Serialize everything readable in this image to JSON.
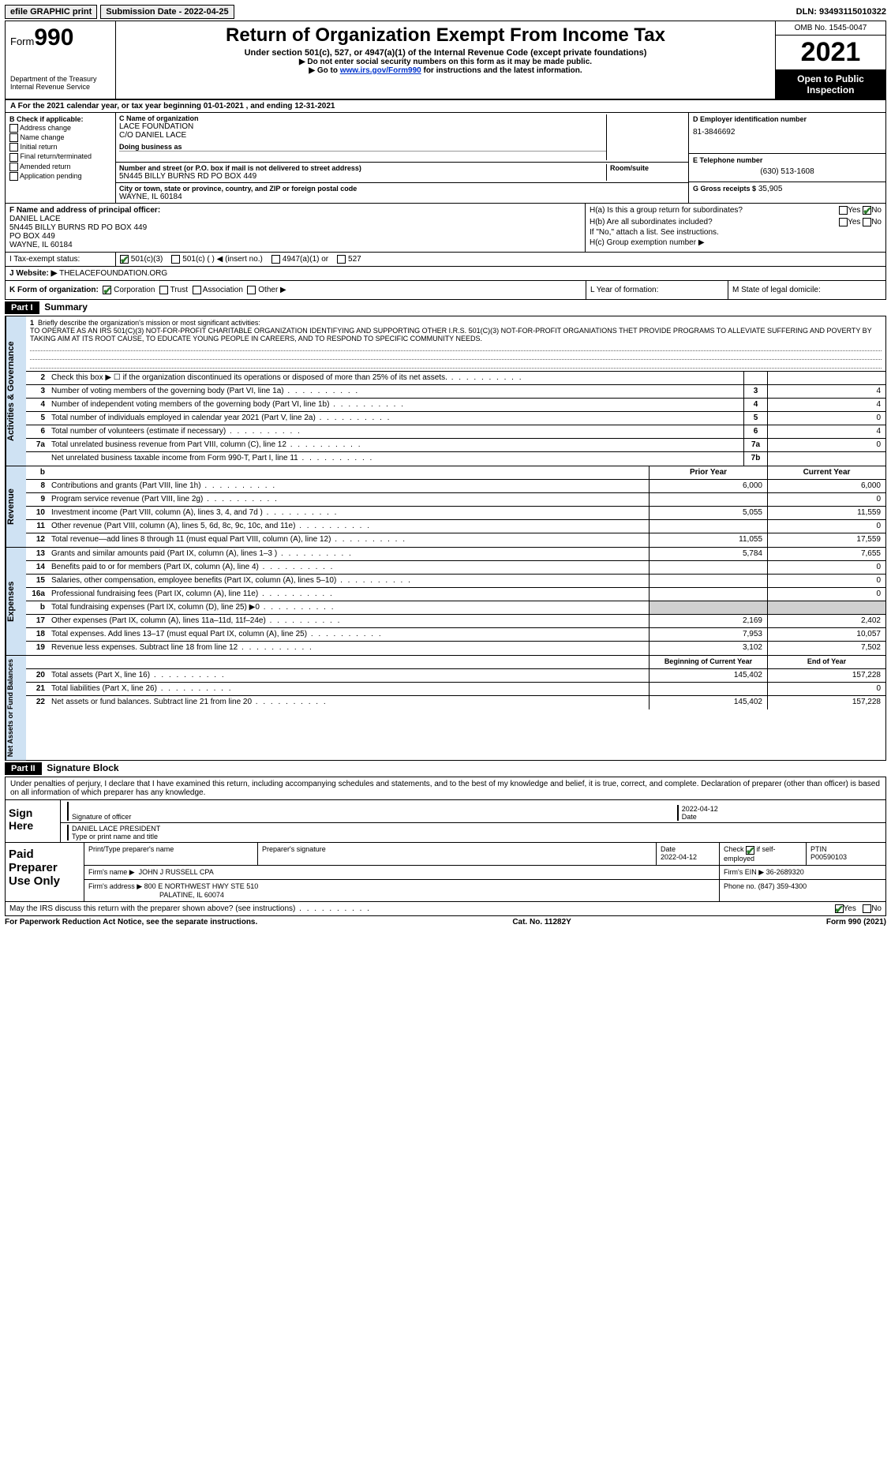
{
  "topbar": {
    "efile": "efile GRAPHIC print",
    "submission": "Submission Date - 2022-04-25",
    "dln": "DLN: 93493115010322"
  },
  "header": {
    "form_label": "Form",
    "form_num": "990",
    "dept": "Department of the Treasury\nInternal Revenue Service",
    "title": "Return of Organization Exempt From Income Tax",
    "sub1": "Under section 501(c), 527, or 4947(a)(1) of the Internal Revenue Code (except private foundations)",
    "sub2": "▶ Do not enter social security numbers on this form as it may be made public.",
    "sub3_pre": "▶ Go to ",
    "sub3_link": "www.irs.gov/Form990",
    "sub3_post": " for instructions and the latest information.",
    "omb": "OMB No. 1545-0047",
    "year": "2021",
    "open": "Open to Public Inspection"
  },
  "row_a": "A  For the 2021 calendar year, or tax year beginning 01-01-2021    , and ending 12-31-2021",
  "col_b": {
    "header": "B Check if applicable:",
    "opts": [
      "Address change",
      "Name change",
      "Initial return",
      "Final return/terminated",
      "Amended return",
      "Application pending"
    ]
  },
  "col_c": {
    "name_lbl": "C Name of organization",
    "name": "LACE FOUNDATION",
    "care": "C/O DANIEL LACE",
    "dba_lbl": "Doing business as",
    "dba": "",
    "addr_lbl": "Number and street (or P.O. box if mail is not delivered to street address)",
    "addr": "5N445 BILLY BURNS RD PO BOX 449",
    "room_lbl": "Room/suite",
    "city_lbl": "City or town, state or province, country, and ZIP or foreign postal code",
    "city": "WAYNE, IL  60184"
  },
  "col_d": {
    "ein_lbl": "D Employer identification number",
    "ein": "81-3846692",
    "phone_lbl": "E Telephone number",
    "phone": "(630) 513-1608",
    "gross_lbl": "G Gross receipts $",
    "gross": "35,905"
  },
  "col_f": {
    "lbl": "F  Name and address of principal officer:",
    "name": "DANIEL LACE",
    "addr1": "5N445 BILLY BURNS RD PO BOX 449",
    "addr2": "PO BOX 449",
    "city": "WAYNE, IL  60184"
  },
  "col_h": {
    "ha": "H(a)  Is this a group return for subordinates?",
    "hb": "H(b)  Are all subordinates included?",
    "hb_note": "If \"No,\" attach a list. See instructions.",
    "hc": "H(c)  Group exemption number ▶",
    "yes": "Yes",
    "no": "No"
  },
  "row_i": {
    "lbl": "I    Tax-exempt status:",
    "o1": "501(c)(3)",
    "o2": "501(c) (  ) ◀ (insert no.)",
    "o3": "4947(a)(1) or",
    "o4": "527"
  },
  "row_j": {
    "lbl": "J   Website: ▶",
    "val": "THELACEFOUNDATION.ORG"
  },
  "row_k": {
    "lbl": "K Form of organization:",
    "opts": [
      "Corporation",
      "Trust",
      "Association",
      "Other ▶"
    ]
  },
  "row_l": "L Year of formation:",
  "row_m": "M State of legal domicile:",
  "part1": {
    "hdr": "Part I",
    "title": "Summary"
  },
  "mission": {
    "num": "1",
    "lbl": "Briefly describe the organization's mission or most significant activities:",
    "txt": "TO OPERATE AS AN IRS 501(C)(3) NOT-FOR-PROFIT CHARITABLE ORGANIZATION IDENTIFYING AND SUPPORTING OTHER I.R.S. 501(C)(3) NOT-FOR-PROFIT ORGANIATIONS THET PROVIDE PROGRAMS TO ALLEVIATE SUFFERING AND POVERTY BY TAKING AIM AT ITS ROOT CAUSE, TO EDUCATE YOUNG PEOPLE IN CAREERS, AND TO RESPOND TO SPECIFIC COMMUNITY NEEDS."
  },
  "gov_lines": [
    {
      "n": "2",
      "t": "Check this box ▶ ☐  if the organization discontinued its operations or disposed of more than 25% of its net assets.",
      "box": "",
      "v": ""
    },
    {
      "n": "3",
      "t": "Number of voting members of the governing body (Part VI, line 1a)",
      "box": "3",
      "v": "4"
    },
    {
      "n": "4",
      "t": "Number of independent voting members of the governing body (Part VI, line 1b)",
      "box": "4",
      "v": "4"
    },
    {
      "n": "5",
      "t": "Total number of individuals employed in calendar year 2021 (Part V, line 2a)",
      "box": "5",
      "v": "0"
    },
    {
      "n": "6",
      "t": "Total number of volunteers (estimate if necessary)",
      "box": "6",
      "v": "4"
    },
    {
      "n": "7a",
      "t": "Total unrelated business revenue from Part VIII, column (C), line 12",
      "box": "7a",
      "v": "0"
    },
    {
      "n": "",
      "t": "Net unrelated business taxable income from Form 990-T, Part I, line 11",
      "box": "7b",
      "v": ""
    }
  ],
  "rev_hdr": {
    "b": "b",
    "prior": "Prior Year",
    "current": "Current Year"
  },
  "rev_lines": [
    {
      "n": "8",
      "t": "Contributions and grants (Part VIII, line 1h)",
      "p": "6,000",
      "c": "6,000"
    },
    {
      "n": "9",
      "t": "Program service revenue (Part VIII, line 2g)",
      "p": "",
      "c": "0"
    },
    {
      "n": "10",
      "t": "Investment income (Part VIII, column (A), lines 3, 4, and 7d )",
      "p": "5,055",
      "c": "11,559"
    },
    {
      "n": "11",
      "t": "Other revenue (Part VIII, column (A), lines 5, 6d, 8c, 9c, 10c, and 11e)",
      "p": "",
      "c": "0"
    },
    {
      "n": "12",
      "t": "Total revenue—add lines 8 through 11 (must equal Part VIII, column (A), line 12)",
      "p": "11,055",
      "c": "17,559"
    }
  ],
  "exp_lines": [
    {
      "n": "13",
      "t": "Grants and similar amounts paid (Part IX, column (A), lines 1–3 )",
      "p": "5,784",
      "c": "7,655"
    },
    {
      "n": "14",
      "t": "Benefits paid to or for members (Part IX, column (A), line 4)",
      "p": "",
      "c": "0"
    },
    {
      "n": "15",
      "t": "Salaries, other compensation, employee benefits (Part IX, column (A), lines 5–10)",
      "p": "",
      "c": "0"
    },
    {
      "n": "16a",
      "t": "Professional fundraising fees (Part IX, column (A), line 11e)",
      "p": "",
      "c": "0"
    },
    {
      "n": "b",
      "t": "Total fundraising expenses (Part IX, column (D), line 25) ▶0",
      "p": "grey",
      "c": "grey"
    },
    {
      "n": "17",
      "t": "Other expenses (Part IX, column (A), lines 11a–11d, 11f–24e)",
      "p": "2,169",
      "c": "2,402"
    },
    {
      "n": "18",
      "t": "Total expenses. Add lines 13–17 (must equal Part IX, column (A), line 25)",
      "p": "7,953",
      "c": "10,057"
    },
    {
      "n": "19",
      "t": "Revenue less expenses. Subtract line 18 from line 12",
      "p": "3,102",
      "c": "7,502"
    }
  ],
  "na_hdr": {
    "prior": "Beginning of Current Year",
    "current": "End of Year"
  },
  "na_lines": [
    {
      "n": "20",
      "t": "Total assets (Part X, line 16)",
      "p": "145,402",
      "c": "157,228"
    },
    {
      "n": "21",
      "t": "Total liabilities (Part X, line 26)",
      "p": "",
      "c": "0"
    },
    {
      "n": "22",
      "t": "Net assets or fund balances. Subtract line 21 from line 20",
      "p": "145,402",
      "c": "157,228"
    }
  ],
  "part2": {
    "hdr": "Part II",
    "title": "Signature Block"
  },
  "sig": {
    "intro": "Under penalties of perjury, I declare that I have examined this return, including accompanying schedules and statements, and to the best of my knowledge and belief, it is true, correct, and complete. Declaration of preparer (other than officer) is based on all information of which preparer has any knowledge.",
    "sign_here": "Sign Here",
    "sig_officer_lbl": "Signature of officer",
    "date_lbl": "Date",
    "date": "2022-04-12",
    "name": "DANIEL LACE  PRESIDENT",
    "name_lbl": "Type or print name and title"
  },
  "prep": {
    "lbl": "Paid Preparer Use Only",
    "pname_lbl": "Print/Type preparer's name",
    "psig_lbl": "Preparer's signature",
    "pdate_lbl": "Date",
    "pdate": "2022-04-12",
    "pcheck": "Check ☑ if self-employed",
    "ptin_lbl": "PTIN",
    "ptin": "P00590103",
    "firm_lbl": "Firm's name   ▶",
    "firm": "JOHN J RUSSELL CPA",
    "fein_lbl": "Firm's EIN ▶",
    "fein": "36-2689320",
    "faddr_lbl": "Firm's address ▶",
    "faddr": "800 E NORTHWEST HWY STE 510",
    "fcity": "PALATINE, IL  60074",
    "fphone_lbl": "Phone no.",
    "fphone": "(847) 359-4300"
  },
  "footer": {
    "q": "May the IRS discuss this return with the preparer shown above? (see instructions)",
    "yes": "Yes",
    "no": "No",
    "pra": "For Paperwork Reduction Act Notice, see the separate instructions.",
    "cat": "Cat. No. 11282Y",
    "form": "Form 990 (2021)"
  },
  "side": {
    "gov": "Activities & Governance",
    "rev": "Revenue",
    "exp": "Expenses",
    "na": "Net Assets or Fund Balances"
  }
}
